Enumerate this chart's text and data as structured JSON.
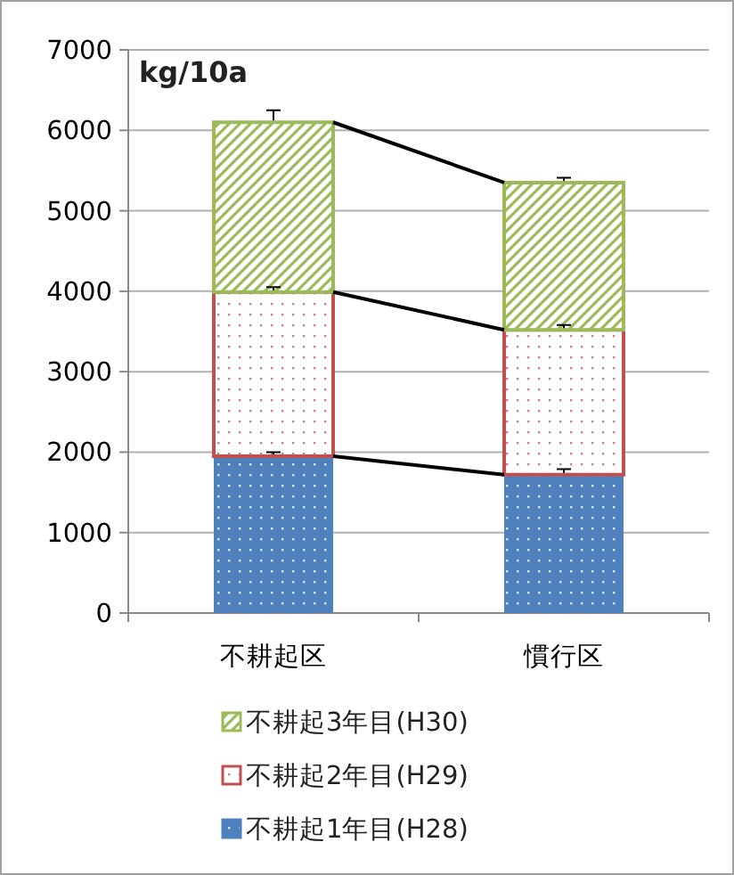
{
  "chart_data": {
    "type": "bar",
    "stacked": true,
    "ylabel": "kg/10a",
    "categories": [
      "不耕起区",
      "慣行区"
    ],
    "series": [
      {
        "name": "不耕起1年目(H28)",
        "color": "#4f81bd",
        "values": [
          1950,
          1720
        ],
        "errors": [
          50,
          70
        ]
      },
      {
        "name": "不耕起2年目(H29)",
        "color": "#c0504d",
        "values": [
          2040,
          1800
        ],
        "errors": [
          60,
          60
        ]
      },
      {
        "name": "不耕起3年目(H30)",
        "color": "#9bbb59",
        "values": [
          2110,
          1830
        ],
        "errors": [
          150,
          60
        ]
      }
    ],
    "ylim": [
      0,
      7000
    ],
    "yticks": [
      0,
      1000,
      2000,
      3000,
      4000,
      5000,
      6000,
      7000
    ],
    "grid": "y",
    "legend": "bottom"
  }
}
